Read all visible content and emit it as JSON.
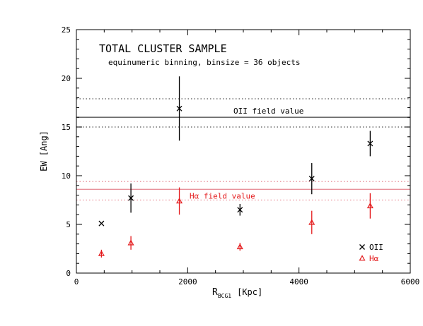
{
  "chart_data": {
    "type": "scatter",
    "title": "TOTAL CLUSTER SAMPLE",
    "subtitle": "equinumeric binning, binsize = 36 objects",
    "xlabel_main": "R",
    "xlabel_sub": "BCG1",
    "xlabel_unit": "[Kpc]",
    "ylabel": "EW [Ang]",
    "xlim": [
      0,
      6000
    ],
    "ylim": [
      0,
      25
    ],
    "xticks": [
      0,
      2000,
      4000,
      6000
    ],
    "yticks": [
      0,
      5,
      10,
      15,
      20,
      25
    ],
    "grid": false,
    "legend_position": "bottom-right",
    "series": [
      {
        "name": "OII",
        "marker": "x",
        "color": "#000000",
        "x": [
          450,
          980,
          1850,
          2940,
          4230,
          5280
        ],
        "y": [
          5.1,
          7.7,
          16.9,
          6.5,
          9.7,
          13.3
        ],
        "yerr": [
          0.0,
          1.5,
          3.3,
          0.6,
          1.6,
          1.3
        ]
      },
      {
        "name": "Hα",
        "marker": "triangle",
        "color": "#e41a1c",
        "x": [
          450,
          980,
          1850,
          2940,
          4230,
          5280
        ],
        "y": [
          2.0,
          3.1,
          7.4,
          2.7,
          5.2,
          6.9
        ],
        "yerr": [
          0.4,
          0.7,
          1.4,
          0.4,
          1.2,
          1.3
        ]
      }
    ],
    "reference_lines": [
      {
        "label": "OII field value",
        "value": 16.0,
        "band": [
          15.0,
          17.9
        ],
        "color": "#555555"
      },
      {
        "label": "Hα field value",
        "value": 8.6,
        "band": [
          7.5,
          9.4
        ],
        "color": "#e8909a"
      }
    ]
  }
}
